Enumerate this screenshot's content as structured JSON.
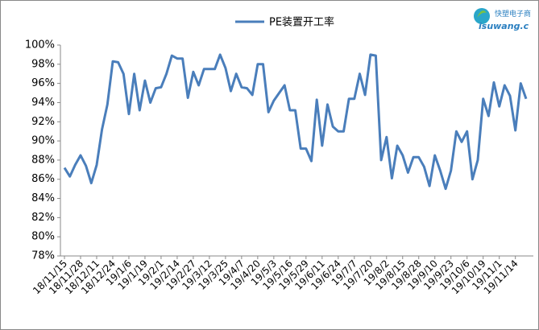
{
  "chart_data": {
    "type": "line",
    "categories": [
      "18/11/15",
      null,
      null,
      "18/11/28",
      null,
      null,
      "18/12/11",
      null,
      null,
      "18/12/24",
      null,
      null,
      "19/1/6",
      null,
      null,
      "19/1/19",
      null,
      null,
      "19/2/1",
      null,
      null,
      "19/2/14",
      null,
      null,
      "19/2/27",
      null,
      null,
      "19/3/12",
      null,
      null,
      "19/3/25",
      null,
      null,
      "19/4/7",
      null,
      null,
      "19/4/20",
      null,
      null,
      "19/5/3",
      null,
      null,
      "19/5/16",
      null,
      null,
      "19/5/29",
      null,
      null,
      "19/6/11",
      null,
      null,
      "19/6/24",
      null,
      null,
      "19/7/7",
      null,
      null,
      "19/7/20",
      null,
      null,
      "19/8/2",
      null,
      null,
      "19/8/15",
      null,
      null,
      "19/8/28",
      null,
      null,
      "19/9/10",
      null,
      null,
      "19/9/23",
      null,
      null,
      "19/10/6",
      null,
      null,
      "19/10/19",
      null,
      null,
      "19/11/1",
      null,
      null,
      "19/11/14",
      null,
      null
    ],
    "series": [
      {
        "name": "PE装置开工率",
        "color": "#4a7ebb",
        "values": [
          87.2,
          86.3,
          87.5,
          88.5,
          87.4,
          85.6,
          87.5,
          91.2,
          93.8,
          98.3,
          98.2,
          97.0,
          92.8,
          97.0,
          93.2,
          96.3,
          94.0,
          95.5,
          95.6,
          97.0,
          98.9,
          98.6,
          98.6,
          94.5,
          97.2,
          95.8,
          97.5,
          97.5,
          97.5,
          99.0,
          97.6,
          95.2,
          97.0,
          95.6,
          95.5,
          94.8,
          98.0,
          98.0,
          93.0,
          94.2,
          95.0,
          95.8,
          93.2,
          93.2,
          89.2,
          89.2,
          87.9,
          94.3,
          89.5,
          93.8,
          91.5,
          91.0,
          91.0,
          94.4,
          94.4,
          97.0,
          94.8,
          99.0,
          98.9,
          88.0,
          90.4,
          86.1,
          89.5,
          88.5,
          86.7,
          88.3,
          88.3,
          87.3,
          85.3,
          88.5,
          86.9,
          85.0,
          86.9,
          91.0,
          89.9,
          91.0,
          86.0,
          88.0,
          94.4,
          92.6,
          96.1,
          93.6,
          95.8,
          94.7,
          91.1,
          96.0,
          94.4
        ]
      }
    ],
    "ylim": [
      78,
      100
    ],
    "yticks": [
      {
        "value": 78,
        "label": "78%"
      },
      {
        "value": 80,
        "label": "80%"
      },
      {
        "value": 82,
        "label": "82%"
      },
      {
        "value": 84,
        "label": "84%"
      },
      {
        "value": 86,
        "label": "86%"
      },
      {
        "value": 88,
        "label": "88%"
      },
      {
        "value": 90,
        "label": "90%"
      },
      {
        "value": 92,
        "label": "92%"
      },
      {
        "value": 94,
        "label": "94%"
      },
      {
        "value": 96,
        "label": "96%"
      },
      {
        "value": 98,
        "label": "98%"
      },
      {
        "value": 100,
        "label": "100%"
      }
    ],
    "grid": false,
    "legend": "top"
  },
  "watermark": {
    "cn": "快塑电子商",
    "en": "isuwang.c"
  }
}
